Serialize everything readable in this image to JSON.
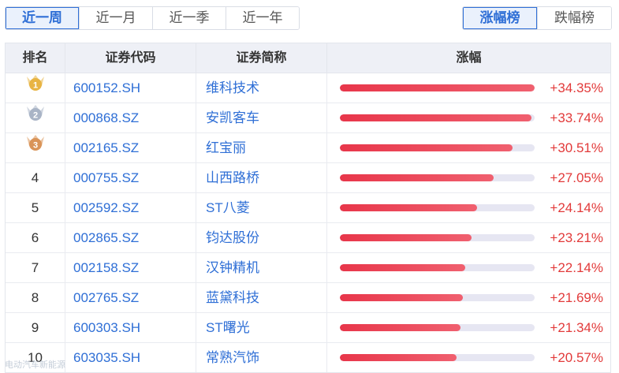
{
  "period_tabs": [
    {
      "label": "近一周",
      "active": true
    },
    {
      "label": "近一月",
      "active": false
    },
    {
      "label": "近一季",
      "active": false
    },
    {
      "label": "近一年",
      "active": false
    }
  ],
  "rank_tabs": [
    {
      "label": "涨幅榜",
      "active": true
    },
    {
      "label": "跌幅榜",
      "active": false
    }
  ],
  "table": {
    "headers": {
      "rank": "排名",
      "code": "证券代码",
      "name": "证券简称",
      "change": "涨幅"
    },
    "rows": [
      {
        "rank": "1",
        "code": "600152.SH",
        "name": "维科技术",
        "change": "+34.35%",
        "value": 34.35
      },
      {
        "rank": "2",
        "code": "000868.SZ",
        "name": "安凯客车",
        "change": "+33.74%",
        "value": 33.74
      },
      {
        "rank": "3",
        "code": "002165.SZ",
        "name": "红宝丽",
        "change": "+30.51%",
        "value": 30.51
      },
      {
        "rank": "4",
        "code": "000755.SZ",
        "name": "山西路桥",
        "change": "+27.05%",
        "value": 27.05
      },
      {
        "rank": "5",
        "code": "002592.SZ",
        "name": "ST八菱",
        "change": "+24.14%",
        "value": 24.14
      },
      {
        "rank": "6",
        "code": "002865.SZ",
        "name": "钧达股份",
        "change": "+23.21%",
        "value": 23.21
      },
      {
        "rank": "7",
        "code": "002158.SZ",
        "name": "汉钟精机",
        "change": "+22.14%",
        "value": 22.14
      },
      {
        "rank": "8",
        "code": "002765.SZ",
        "name": "蓝黛科技",
        "change": "+21.69%",
        "value": 21.69
      },
      {
        "rank": "9",
        "code": "600303.SH",
        "name": "ST曙光",
        "change": "+21.34%",
        "value": 21.34
      },
      {
        "rank": "10",
        "code": "603035.SH",
        "name": "常熟汽饰",
        "change": "+20.57%",
        "value": 20.57
      }
    ],
    "bar_max": 34.35
  },
  "watermark": "电动汽车新能源",
  "colors": {
    "accent": "#2f6fd6",
    "up": "#e23a3a",
    "bar": "#e8364a",
    "track": "#e6e6f2",
    "gold": "#e8b443",
    "silver": "#a9b4c6",
    "bronze": "#d99458"
  },
  "icons": {
    "medal_1": "gold-medal-icon",
    "medal_2": "silver-medal-icon",
    "medal_3": "bronze-medal-icon"
  }
}
